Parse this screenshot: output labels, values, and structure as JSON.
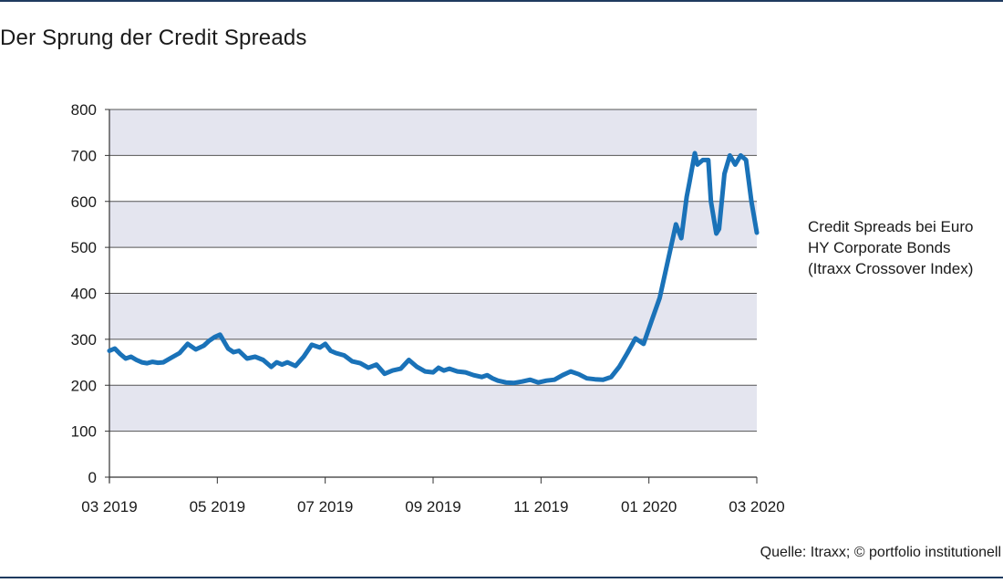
{
  "title": "Der Sprung der Credit Spreads",
  "source": "Quelle: Itraxx; © portfolio institutionell",
  "colors": {
    "line": "#1a72b8",
    "band": "#e4e5ef",
    "grid": "#555555"
  },
  "chart_data": {
    "type": "line",
    "title": "Der Sprung der Credit Spreads",
    "xlabel": "",
    "ylabel": "",
    "ylim": [
      0,
      800
    ],
    "yticks": [
      "0",
      "100",
      "200",
      "300",
      "400",
      "500",
      "600",
      "700",
      "800"
    ],
    "xticks": [
      "03 2019",
      "05 2019",
      "07 2019",
      "09 2019",
      "11 2019",
      "01 2020",
      "03 2020"
    ],
    "xlim": [
      "03 2019",
      "03 2020"
    ],
    "grid": true,
    "legend_position": "right",
    "legend_lines": [
      "Credit Spreads bei Euro",
      "HY Corporate Bonds",
      "(Itraxx Crossover Index)"
    ],
    "series": [
      {
        "name": "Credit Spreads bei Euro HY Corporate Bonds (Itraxx Crossover Index)",
        "x_unit": "months since 03 2019",
        "x": [
          0,
          0.1,
          0.2,
          0.3,
          0.4,
          0.5,
          0.6,
          0.7,
          0.8,
          0.9,
          1.0,
          1.15,
          1.3,
          1.45,
          1.6,
          1.75,
          1.85,
          1.95,
          2.05,
          2.2,
          2.3,
          2.4,
          2.55,
          2.7,
          2.85,
          3.0,
          3.1,
          3.2,
          3.3,
          3.45,
          3.6,
          3.75,
          3.9,
          4.0,
          4.1,
          4.2,
          4.35,
          4.5,
          4.65,
          4.8,
          4.95,
          5.1,
          5.25,
          5.4,
          5.55,
          5.7,
          5.85,
          6.0,
          6.1,
          6.2,
          6.3,
          6.45,
          6.6,
          6.75,
          6.9,
          7.0,
          7.1,
          7.2,
          7.35,
          7.5,
          7.65,
          7.8,
          7.95,
          8.1,
          8.25,
          8.4,
          8.55,
          8.7,
          8.85,
          9.0,
          9.15,
          9.3,
          9.45,
          9.6,
          9.75,
          9.9,
          10.05,
          10.2,
          10.35,
          10.5,
          10.6,
          10.7,
          10.75,
          10.85,
          10.9,
          11.0,
          11.1,
          11.15,
          11.25,
          11.3,
          11.4,
          11.5,
          11.55,
          11.6,
          11.65,
          11.7,
          11.8,
          11.9,
          12.0
        ],
        "values": [
          275,
          280,
          268,
          258,
          262,
          255,
          250,
          248,
          251,
          249,
          250,
          260,
          270,
          290,
          278,
          286,
          297,
          305,
          310,
          280,
          272,
          275,
          258,
          262,
          255,
          240,
          250,
          245,
          250,
          242,
          262,
          288,
          282,
          290,
          275,
          270,
          265,
          252,
          248,
          238,
          245,
          225,
          232,
          236,
          255,
          240,
          230,
          228,
          238,
          232,
          236,
          230,
          228,
          222,
          218,
          222,
          215,
          210,
          206,
          205,
          208,
          212,
          206,
          210,
          212,
          222,
          230,
          224,
          215,
          213,
          212,
          218,
          240,
          270,
          302,
          290,
          340,
          390,
          470,
          550,
          520,
          610,
          640,
          705,
          680,
          690,
          690,
          600,
          530,
          540,
          660,
          700,
          690,
          680,
          690,
          700,
          690,
          600,
          532
        ]
      }
    ]
  }
}
